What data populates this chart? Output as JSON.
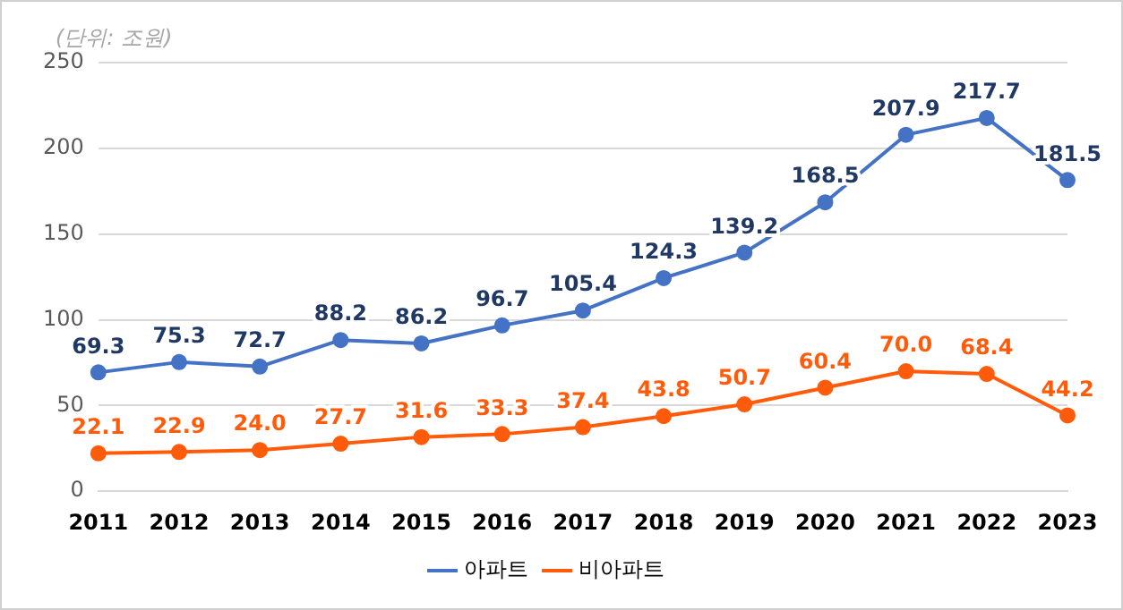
{
  "chart_data": {
    "type": "line",
    "annotations": [
      "(단위: 조원)"
    ],
    "categories": [
      "2011",
      "2012",
      "2013",
      "2014",
      "2015",
      "2016",
      "2017",
      "2018",
      "2019",
      "2020",
      "2021",
      "2022",
      "2023"
    ],
    "series": [
      {
        "name": "아파트",
        "color": "#4472c4",
        "values": [
          69.3,
          75.3,
          72.7,
          88.2,
          86.2,
          96.7,
          105.4,
          124.3,
          139.2,
          168.5,
          207.9,
          217.7,
          181.5
        ],
        "value_labels": [
          "69.3",
          "75.3",
          "72.7",
          "88.2",
          "86.2",
          "96.7",
          "105.4",
          "124.3",
          "139.2",
          "168.5",
          "207.9",
          "217.7",
          "181.5"
        ]
      },
      {
        "name": "비아파트",
        "color": "#ff5b0a",
        "values": [
          22.1,
          22.9,
          24.0,
          27.7,
          31.6,
          33.3,
          37.4,
          43.8,
          50.7,
          60.4,
          70.0,
          68.4,
          44.2
        ],
        "value_labels": [
          "22.1",
          "22.9",
          "24.0",
          "27.7",
          "31.6",
          "33.3",
          "37.4",
          "43.8",
          "50.7",
          "60.4",
          "70.0",
          "68.4",
          "44.2"
        ]
      }
    ],
    "ylim": [
      0,
      250
    ],
    "yticks": [
      0,
      50,
      100,
      150,
      200,
      250
    ],
    "grid": "y",
    "legend": "bottom",
    "marker": "circle",
    "line_style": "solid"
  }
}
